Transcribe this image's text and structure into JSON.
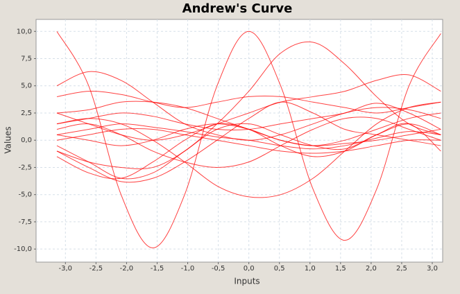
{
  "chart_data": {
    "type": "line",
    "title": "Andrew's Curve",
    "x_label": "Inputs",
    "y_label": "Values",
    "color": "#ff0000",
    "grid": true,
    "x": [
      -3.14,
      -2.62,
      -2.09,
      -1.57,
      -1.05,
      -0.52,
      0,
      0.52,
      1.05,
      1.57,
      2.09,
      2.62,
      3.14
    ],
    "xlim": [
      -3.48,
      3.17
    ],
    "xticks": [
      {
        "value": -3.0,
        "label": "-3,0"
      },
      {
        "value": -2.5,
        "label": "-2,5"
      },
      {
        "value": -2.0,
        "label": "-2,0"
      },
      {
        "value": -1.5,
        "label": "-1,5"
      },
      {
        "value": -1.0,
        "label": "-1,0"
      },
      {
        "value": -0.5,
        "label": "-0,5"
      },
      {
        "value": 0,
        "label": "0,0"
      },
      {
        "value": 0.5,
        "label": "0,5"
      },
      {
        "value": 1.0,
        "label": "1,0"
      },
      {
        "value": 1.5,
        "label": "1,5"
      },
      {
        "value": 2.0,
        "label": "2,0"
      },
      {
        "value": 2.5,
        "label": "2,5"
      },
      {
        "value": 3.0,
        "label": "3,0"
      }
    ],
    "ylim": [
      -11.2,
      11.1
    ],
    "yticks": [
      {
        "value": -10,
        "label": "-10,0"
      },
      {
        "value": -7.5,
        "label": "-7,5"
      },
      {
        "value": -5,
        "label": "-5,0"
      },
      {
        "value": -2.5,
        "label": "-2,5"
      },
      {
        "value": 0,
        "label": "0,0"
      },
      {
        "value": 2.5,
        "label": "2,5"
      },
      {
        "value": 5,
        "label": "5,0"
      },
      {
        "value": 7.5,
        "label": "7,5"
      },
      {
        "value": 10,
        "label": "10,0"
      }
    ],
    "series": [
      {
        "values": [
          10,
          5,
          -5,
          -9.9,
          -5,
          5,
          10,
          5,
          -4.5,
          -9.2,
          -4.5,
          5,
          9.8
        ]
      },
      {
        "values": [
          -1,
          -2,
          -2.5,
          -2.5,
          -1,
          1.5,
          4.5,
          8,
          9,
          7,
          4,
          1.5,
          0.5
        ]
      },
      {
        "values": [
          1.5,
          2,
          1.5,
          0,
          -2,
          -4.2,
          -5.2,
          -5,
          -3.5,
          -1,
          1.5,
          3,
          3.5
        ]
      },
      {
        "values": [
          5,
          6.3,
          5.5,
          3.5,
          1.5,
          0.5,
          0,
          0.5,
          1.5,
          2.5,
          3,
          2.8,
          2
        ]
      },
      {
        "values": [
          2.5,
          1.5,
          0.5,
          0,
          0.5,
          1.5,
          2.5,
          3.5,
          4,
          4.5,
          5.5,
          6,
          4.5
        ]
      },
      {
        "values": [
          -0.5,
          -2,
          -3.5,
          -3,
          -1,
          1,
          1.5,
          0.5,
          -0.5,
          -0.8,
          0.5,
          1.5,
          0.5
        ]
      },
      {
        "values": [
          0.5,
          1,
          1.5,
          1.2,
          0.8,
          0.3,
          0,
          -0.5,
          -0.8,
          -0.5,
          0.2,
          0.8,
          0.5
        ]
      },
      {
        "values": [
          -1,
          -2.5,
          -3.8,
          -3.5,
          -2,
          0,
          2,
          3.5,
          2.5,
          1,
          0.5,
          0,
          -0.5
        ]
      },
      {
        "values": [
          1.5,
          2,
          2.5,
          2.2,
          1.5,
          1,
          1,
          1.5,
          2,
          2.5,
          3.4,
          2.5,
          1
        ]
      },
      {
        "values": [
          0,
          0.5,
          1,
          1,
          0.5,
          0,
          -0.5,
          -1,
          -1.2,
          -1,
          -0.5,
          0,
          0
        ]
      },
      {
        "values": [
          2.5,
          2.8,
          3.5,
          3.5,
          3,
          2,
          1,
          0,
          -0.5,
          -0.3,
          0,
          0.5,
          1
        ]
      },
      {
        "values": [
          -1.5,
          -3,
          -3.5,
          -2,
          0,
          1.5,
          1,
          -0.5,
          -1.5,
          -1,
          0.5,
          1.5,
          -1
        ]
      },
      {
        "values": [
          1,
          1.5,
          0.5,
          -1,
          -2,
          -2.5,
          -2,
          -0.5,
          1,
          2,
          2,
          1,
          0
        ]
      },
      {
        "values": [
          4,
          4.5,
          4.2,
          3.5,
          3,
          3.5,
          4,
          4,
          3.5,
          3,
          2.5,
          3,
          3.5
        ]
      },
      {
        "values": [
          0.5,
          0,
          -0.5,
          0,
          1,
          1.5,
          1,
          0,
          -0.5,
          0,
          1,
          2,
          2.5
        ]
      }
    ]
  }
}
